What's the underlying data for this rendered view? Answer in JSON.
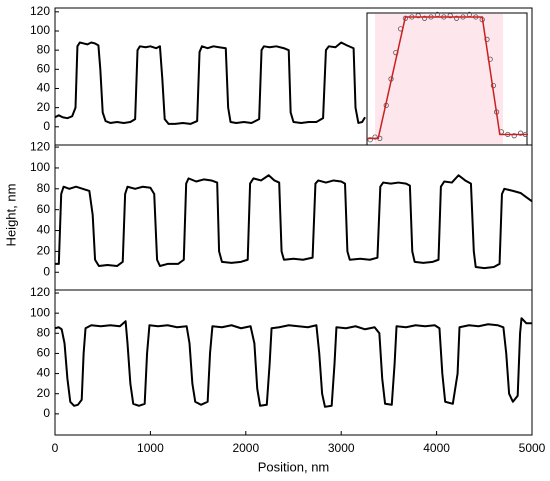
{
  "chart_data": [
    {
      "type": "line",
      "color": "#000000",
      "xlim": [
        0,
        5000
      ],
      "ylim": [
        -19,
        124
      ],
      "yticks": [
        0,
        20,
        40,
        60,
        80,
        100,
        120
      ],
      "x": [
        0,
        40,
        80,
        130,
        180,
        215,
        235,
        260,
        300,
        340,
        380,
        420,
        455,
        475,
        500,
        530,
        580,
        650,
        720,
        790,
        840,
        865,
        890,
        950,
        1000,
        1060,
        1100,
        1125,
        1150,
        1190,
        1260,
        1340,
        1420,
        1490,
        1515,
        1540,
        1600,
        1660,
        1720,
        1790,
        1815,
        1840,
        1900,
        1980,
        2060,
        2140,
        2165,
        2190,
        2250,
        2320,
        2400,
        2450,
        2470,
        2500,
        2580,
        2660,
        2740,
        2810,
        2840,
        2870,
        2940,
        3000,
        3060,
        3130,
        3150,
        3180,
        3220,
        3250
      ],
      "values": [
        10,
        12,
        10,
        9,
        11,
        20,
        84,
        88,
        87,
        86,
        88,
        87,
        85,
        60,
        15,
        6,
        4,
        5,
        4,
        5,
        8,
        80,
        84,
        83,
        84,
        82,
        84,
        50,
        8,
        3,
        3,
        4,
        3,
        6,
        78,
        84,
        82,
        84,
        83,
        82,
        20,
        5,
        4,
        5,
        4,
        8,
        80,
        84,
        83,
        84,
        82,
        80,
        15,
        5,
        4,
        5,
        5,
        9,
        80,
        84,
        83,
        88,
        85,
        82,
        20,
        4,
        5,
        10
      ]
    },
    {
      "type": "line",
      "color": "#000000",
      "ylabel": "Height, nm",
      "xlim": [
        0,
        5000
      ],
      "ylim": [
        -17,
        122
      ],
      "yticks": [
        0,
        20,
        40,
        60,
        80,
        100,
        120
      ],
      "x": [
        0,
        40,
        65,
        90,
        150,
        220,
        290,
        360,
        395,
        420,
        460,
        550,
        650,
        710,
        735,
        760,
        840,
        920,
        1000,
        1040,
        1070,
        1100,
        1180,
        1290,
        1350,
        1375,
        1400,
        1480,
        1560,
        1640,
        1700,
        1720,
        1750,
        1850,
        1950,
        2020,
        2045,
        2080,
        2160,
        2240,
        2300,
        2350,
        2375,
        2400,
        2500,
        2600,
        2700,
        2730,
        2760,
        2840,
        2920,
        3000,
        3040,
        3065,
        3090,
        3200,
        3300,
        3380,
        3410,
        3440,
        3520,
        3600,
        3680,
        3720,
        3745,
        3770,
        3860,
        3960,
        4020,
        4045,
        4080,
        4160,
        4230,
        4300,
        4360,
        4390,
        4410,
        4500,
        4600,
        4660,
        4685,
        4710,
        4800,
        4880,
        4940,
        5000
      ],
      "values": [
        8,
        8,
        75,
        82,
        80,
        82,
        80,
        78,
        55,
        12,
        6,
        7,
        6,
        10,
        75,
        82,
        80,
        82,
        81,
        75,
        12,
        6,
        8,
        8,
        12,
        85,
        90,
        87,
        89,
        88,
        86,
        20,
        10,
        9,
        10,
        12,
        85,
        90,
        88,
        93,
        88,
        86,
        20,
        12,
        13,
        12,
        14,
        85,
        88,
        86,
        88,
        87,
        85,
        20,
        12,
        13,
        12,
        14,
        82,
        86,
        85,
        86,
        85,
        83,
        20,
        10,
        9,
        10,
        12,
        82,
        87,
        86,
        93,
        88,
        85,
        20,
        5,
        4,
        5,
        8,
        75,
        80,
        78,
        76,
        72,
        68
      ]
    },
    {
      "type": "line",
      "color": "#000000",
      "xlabel": "Position, nm",
      "xlim": [
        0,
        5000
      ],
      "ylim": [
        -21,
        123
      ],
      "yticks": [
        0,
        20,
        40,
        60,
        80,
        100,
        120
      ],
      "xticks": [
        0,
        1000,
        2000,
        3000,
        4000,
        5000
      ],
      "x": [
        0,
        40,
        70,
        100,
        130,
        160,
        200,
        240,
        280,
        300,
        320,
        380,
        480,
        580,
        680,
        740,
        760,
        790,
        820,
        880,
        940,
        965,
        990,
        1080,
        1180,
        1280,
        1380,
        1410,
        1440,
        1470,
        1530,
        1600,
        1625,
        1650,
        1750,
        1850,
        1950,
        2050,
        2090,
        2120,
        2150,
        2220,
        2250,
        2270,
        2350,
        2450,
        2550,
        2650,
        2740,
        2770,
        2800,
        2830,
        2900,
        2930,
        2950,
        3050,
        3150,
        3250,
        3350,
        3400,
        3430,
        3460,
        3530,
        3560,
        3580,
        3680,
        3780,
        3880,
        3980,
        4030,
        4060,
        4090,
        4170,
        4220,
        4240,
        4340,
        4440,
        4540,
        4640,
        4700,
        4730,
        4760,
        4800,
        4850,
        4875,
        4890,
        4940,
        5000
      ],
      "values": [
        85,
        86,
        84,
        70,
        35,
        12,
        8,
        9,
        14,
        60,
        85,
        88,
        87,
        88,
        87,
        92,
        70,
        30,
        10,
        8,
        10,
        60,
        88,
        87,
        88,
        86,
        87,
        70,
        30,
        12,
        9,
        12,
        60,
        87,
        86,
        88,
        85,
        87,
        70,
        25,
        8,
        9,
        50,
        85,
        86,
        88,
        87,
        86,
        88,
        60,
        20,
        7,
        8,
        50,
        86,
        85,
        87,
        84,
        86,
        80,
        35,
        10,
        9,
        50,
        87,
        86,
        88,
        87,
        88,
        85,
        40,
        12,
        10,
        40,
        86,
        88,
        87,
        89,
        88,
        86,
        60,
        20,
        12,
        18,
        80,
        95,
        90,
        90
      ]
    },
    {
      "type": "scatter",
      "color": "#555555",
      "xlim": [
        0,
        100
      ],
      "ylim": [
        0,
        100
      ],
      "x": [
        2,
        5,
        8,
        12,
        15,
        18,
        21,
        24,
        28,
        32,
        36,
        40,
        44,
        48,
        52,
        56,
        60,
        64,
        68,
        72,
        75,
        77,
        79,
        81,
        84,
        88,
        92,
        96,
        99
      ],
      "values": [
        4,
        6,
        5,
        30,
        50,
        70,
        88,
        96,
        97,
        98,
        96,
        97,
        99,
        97,
        98,
        96,
        97,
        99,
        97,
        95,
        80,
        65,
        45,
        25,
        10,
        8,
        7,
        9,
        8
      ],
      "fit": {
        "color": "#cc2020",
        "x": [
          0,
          7,
          24,
          72,
          83,
          100
        ],
        "values": [
          5,
          5,
          97,
          97,
          8,
          8
        ]
      }
    }
  ]
}
